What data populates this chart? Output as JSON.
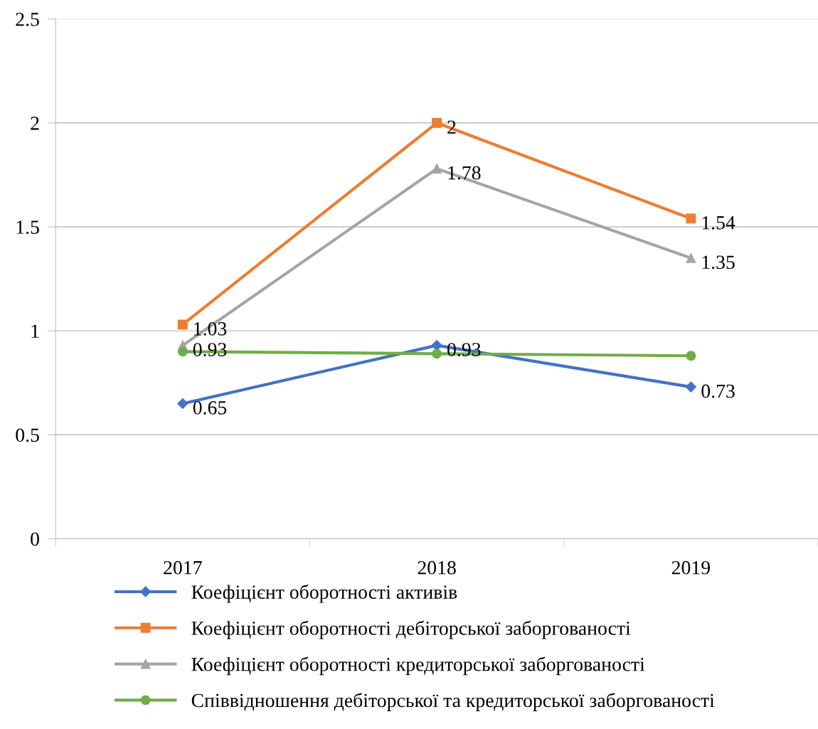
{
  "chart_data": {
    "type": "line",
    "categories": [
      "2017",
      "2018",
      "2019"
    ],
    "series": [
      {
        "name": "Коефіцієнт оборотності активів",
        "color": "#4472c4",
        "marker": "diamond",
        "values": [
          0.65,
          0.93,
          0.73
        ],
        "value_labels": [
          "0.65",
          "0.93",
          "0.73"
        ]
      },
      {
        "name": "Коефіцієнт оборотності дебіторської заборгованості",
        "color": "#ed7d31",
        "marker": "square",
        "values": [
          1.03,
          2,
          1.54
        ],
        "value_labels": [
          "1.03",
          "2",
          "1.54"
        ]
      },
      {
        "name": "Коефіцієнт оборотності кредиторської заборгованості",
        "color": "#a5a5a5",
        "marker": "triangle",
        "values": [
          0.93,
          1.78,
          1.35
        ],
        "value_labels": [
          "0.93",
          "1.78",
          "1.35"
        ]
      },
      {
        "name": "Співвідношення дебіторської та кредиторської заборгованості",
        "color": "#70ad47",
        "marker": "circle",
        "values": [
          0.9,
          0.89,
          0.88
        ]
      }
    ],
    "ylim": [
      0,
      2.5
    ],
    "yticks": [
      0,
      0.5,
      1,
      1.5,
      2,
      2.5
    ],
    "grid": "y",
    "legend": "bottom",
    "line_style": "solid"
  }
}
